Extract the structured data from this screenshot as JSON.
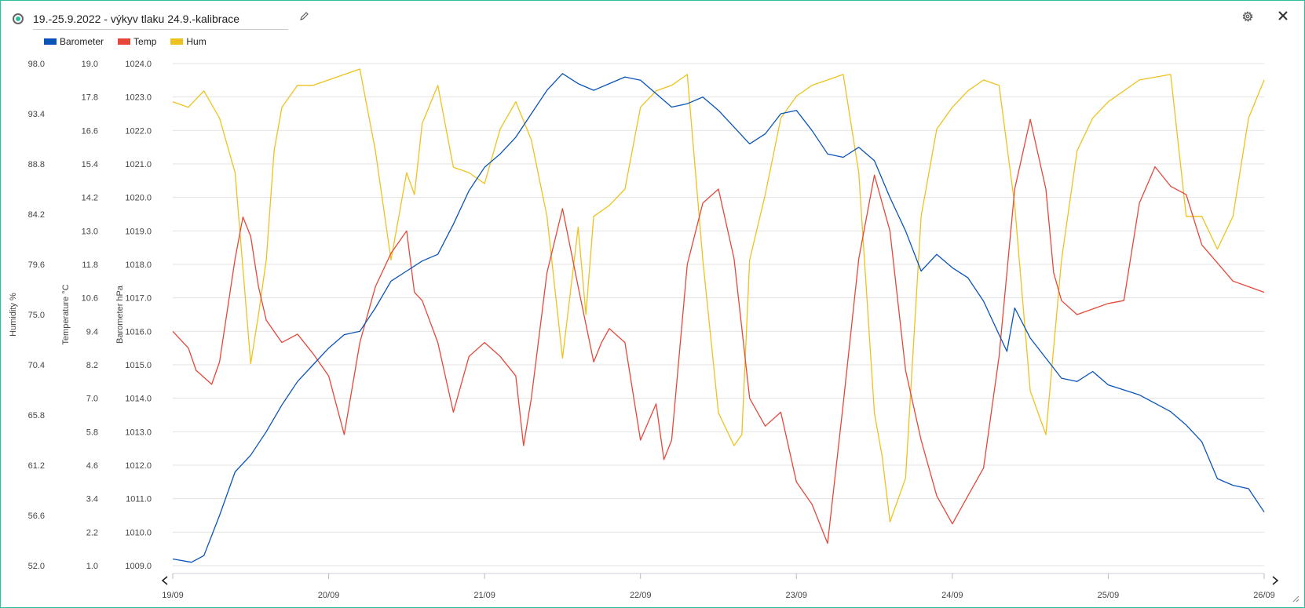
{
  "header": {
    "title": "19.-25.9.2022 - výkyv tlaku 24.9.-kalibrace",
    "icons": [
      "status-icon",
      "edit-icon",
      "gear-icon",
      "close-icon"
    ]
  },
  "colors": {
    "barometer": "#0a54b8",
    "temp": "#e5483a",
    "hum": "#eec21e",
    "accent": "#2bbf9f",
    "grid": "#e3e3e3"
  },
  "chart_data": {
    "type": "line",
    "legend_placement": "top-left",
    "grid": true,
    "x_ticks": [
      "19/09",
      "20/09",
      "21/09",
      "22/09",
      "23/09",
      "24/09",
      "25/09",
      "26/09"
    ],
    "xlim_days": [
      19,
      26
    ],
    "axes": {
      "humidity": {
        "label": "Humidity %",
        "ticks": [
          "98.0",
          "93.4",
          "88.8",
          "84.2",
          "79.6",
          "75.0",
          "70.4",
          "65.8",
          "61.2",
          "56.6",
          "52.0"
        ],
        "ylim": [
          52.0,
          98.0
        ]
      },
      "temperature": {
        "label": "Temperature °C",
        "ticks": [
          "19.0",
          "17.8",
          "16.6",
          "15.4",
          "14.2",
          "13.0",
          "11.8",
          "10.6",
          "9.4",
          "8.2",
          "7.0",
          "5.8",
          "4.6",
          "3.4",
          "2.2",
          "1.0"
        ],
        "ylim": [
          1.0,
          19.0
        ]
      },
      "barometer": {
        "label": "Barometer hPa",
        "ticks": [
          "1024.0",
          "1023.0",
          "1022.0",
          "1021.0",
          "1020.0",
          "1019.0",
          "1018.0",
          "1017.0",
          "1016.0",
          "1015.0",
          "1014.0",
          "1013.0",
          "1012.0",
          "1011.0",
          "1010.0",
          "1009.0"
        ],
        "ylim": [
          1009.0,
          1024.0
        ]
      }
    },
    "series": [
      {
        "name": "Barometer",
        "axis": "barometer",
        "color": "#0a54b8",
        "x": [
          19.0,
          19.12,
          19.2,
          19.3,
          19.4,
          19.5,
          19.6,
          19.7,
          19.8,
          19.9,
          20.0,
          20.1,
          20.2,
          20.3,
          20.4,
          20.5,
          20.6,
          20.7,
          20.8,
          20.9,
          21.0,
          21.1,
          21.2,
          21.3,
          21.4,
          21.5,
          21.6,
          21.7,
          21.8,
          21.9,
          22.0,
          22.1,
          22.2,
          22.3,
          22.4,
          22.5,
          22.6,
          22.7,
          22.8,
          22.9,
          23.0,
          23.1,
          23.2,
          23.3,
          23.4,
          23.5,
          23.6,
          23.7,
          23.8,
          23.9,
          24.0,
          24.1,
          24.2,
          24.3,
          24.35,
          24.4,
          24.5,
          24.6,
          24.7,
          24.8,
          24.9,
          25.0,
          25.2,
          25.4,
          25.5,
          25.6,
          25.7,
          25.8,
          25.9,
          26.0
        ],
        "values": [
          1009.2,
          1009.1,
          1009.3,
          1010.5,
          1011.8,
          1012.3,
          1013.0,
          1013.8,
          1014.5,
          1015.0,
          1015.5,
          1015.9,
          1016.0,
          1016.7,
          1017.5,
          1017.8,
          1018.1,
          1018.3,
          1019.2,
          1020.2,
          1020.9,
          1021.3,
          1021.8,
          1022.5,
          1023.2,
          1023.7,
          1023.4,
          1023.2,
          1023.4,
          1023.6,
          1023.5,
          1023.1,
          1022.7,
          1022.8,
          1023.0,
          1022.6,
          1022.1,
          1021.6,
          1021.9,
          1022.5,
          1022.6,
          1022.0,
          1021.3,
          1021.2,
          1021.5,
          1021.1,
          1020.0,
          1019.0,
          1017.8,
          1018.3,
          1017.9,
          1017.6,
          1016.9,
          1015.9,
          1015.4,
          1016.7,
          1015.8,
          1015.2,
          1014.6,
          1014.5,
          1014.8,
          1014.4,
          1014.1,
          1013.6,
          1013.2,
          1012.7,
          1011.6,
          1011.4,
          1011.3,
          1010.6
        ]
      },
      {
        "name": "Temp",
        "axis": "temperature",
        "color": "#e5483a",
        "x": [
          19.0,
          19.1,
          19.15,
          19.25,
          19.3,
          19.4,
          19.45,
          19.5,
          19.55,
          19.6,
          19.7,
          19.8,
          19.9,
          20.0,
          20.1,
          20.2,
          20.3,
          20.4,
          20.5,
          20.55,
          20.6,
          20.7,
          20.8,
          20.9,
          21.0,
          21.1,
          21.2,
          21.25,
          21.3,
          21.4,
          21.5,
          21.6,
          21.7,
          21.75,
          21.8,
          21.9,
          22.0,
          22.1,
          22.15,
          22.2,
          22.3,
          22.4,
          22.5,
          22.6,
          22.7,
          22.8,
          22.9,
          23.0,
          23.1,
          23.2,
          23.3,
          23.4,
          23.5,
          23.6,
          23.7,
          23.8,
          23.9,
          24.0,
          24.1,
          24.2,
          24.3,
          24.4,
          24.5,
          24.6,
          24.65,
          24.7,
          24.8,
          24.9,
          25.0,
          25.1,
          25.2,
          25.3,
          25.4,
          25.5,
          25.6,
          25.8,
          25.9,
          26.0
        ],
        "values": [
          9.4,
          8.8,
          8.0,
          7.5,
          8.3,
          12.0,
          13.5,
          12.8,
          11.0,
          9.8,
          9.0,
          9.3,
          8.6,
          7.8,
          5.7,
          9.0,
          11.0,
          12.2,
          13.0,
          10.8,
          10.5,
          9.0,
          6.5,
          8.5,
          9.0,
          8.5,
          7.8,
          5.3,
          7.0,
          11.5,
          13.8,
          11.0,
          8.3,
          9.0,
          9.5,
          9.0,
          5.5,
          6.8,
          4.8,
          5.5,
          11.8,
          14.0,
          14.5,
          12.0,
          7.0,
          6.0,
          6.5,
          4.0,
          3.2,
          1.8,
          6.8,
          12.0,
          15.0,
          13.0,
          8.0,
          5.5,
          3.5,
          2.5,
          3.5,
          4.5,
          8.5,
          14.5,
          17.0,
          14.5,
          11.5,
          10.5,
          10.0,
          10.2,
          10.4,
          10.5,
          14.0,
          15.3,
          14.6,
          14.3,
          12.5,
          11.2,
          11.0,
          10.8
        ]
      },
      {
        "name": "Hum",
        "axis": "humidity",
        "color": "#eec21e",
        "x": [
          19.0,
          19.1,
          19.2,
          19.3,
          19.4,
          19.5,
          19.55,
          19.6,
          19.65,
          19.7,
          19.8,
          19.9,
          20.0,
          20.1,
          20.2,
          20.3,
          20.4,
          20.5,
          20.55,
          20.6,
          20.7,
          20.8,
          20.9,
          21.0,
          21.1,
          21.2,
          21.3,
          21.4,
          21.5,
          21.6,
          21.65,
          21.7,
          21.8,
          21.9,
          22.0,
          22.1,
          22.2,
          22.3,
          22.4,
          22.5,
          22.6,
          22.65,
          22.7,
          22.8,
          22.9,
          23.0,
          23.1,
          23.2,
          23.3,
          23.4,
          23.5,
          23.55,
          23.6,
          23.7,
          23.8,
          23.9,
          24.0,
          24.1,
          24.2,
          24.3,
          24.4,
          24.5,
          24.6,
          24.7,
          24.8,
          24.9,
          25.0,
          25.2,
          25.4,
          25.5,
          25.6,
          25.7,
          25.8,
          25.9,
          26.0
        ],
        "values": [
          94.5,
          94.0,
          95.5,
          93.0,
          88.0,
          70.5,
          75.0,
          80.0,
          90.0,
          94.0,
          96.0,
          96.0,
          96.5,
          97.0,
          97.5,
          90.0,
          80.0,
          88.0,
          86.0,
          92.5,
          96.0,
          88.5,
          88.0,
          87.0,
          92.0,
          94.5,
          91.0,
          84.0,
          71.0,
          83.0,
          75.0,
          84.0,
          85.0,
          86.5,
          94.0,
          95.5,
          96.0,
          97.0,
          80.0,
          66.0,
          63.0,
          64.0,
          80.0,
          86.0,
          93.0,
          95.0,
          96.0,
          96.5,
          97.0,
          88.0,
          66.0,
          62.0,
          56.0,
          60.0,
          84.0,
          92.0,
          94.0,
          95.5,
          96.5,
          96.0,
          85.0,
          68.0,
          64.0,
          80.0,
          90.0,
          93.0,
          94.5,
          96.5,
          97.0,
          84.0,
          84.0,
          81.0,
          84.0,
          93.0,
          96.5
        ]
      }
    ]
  }
}
